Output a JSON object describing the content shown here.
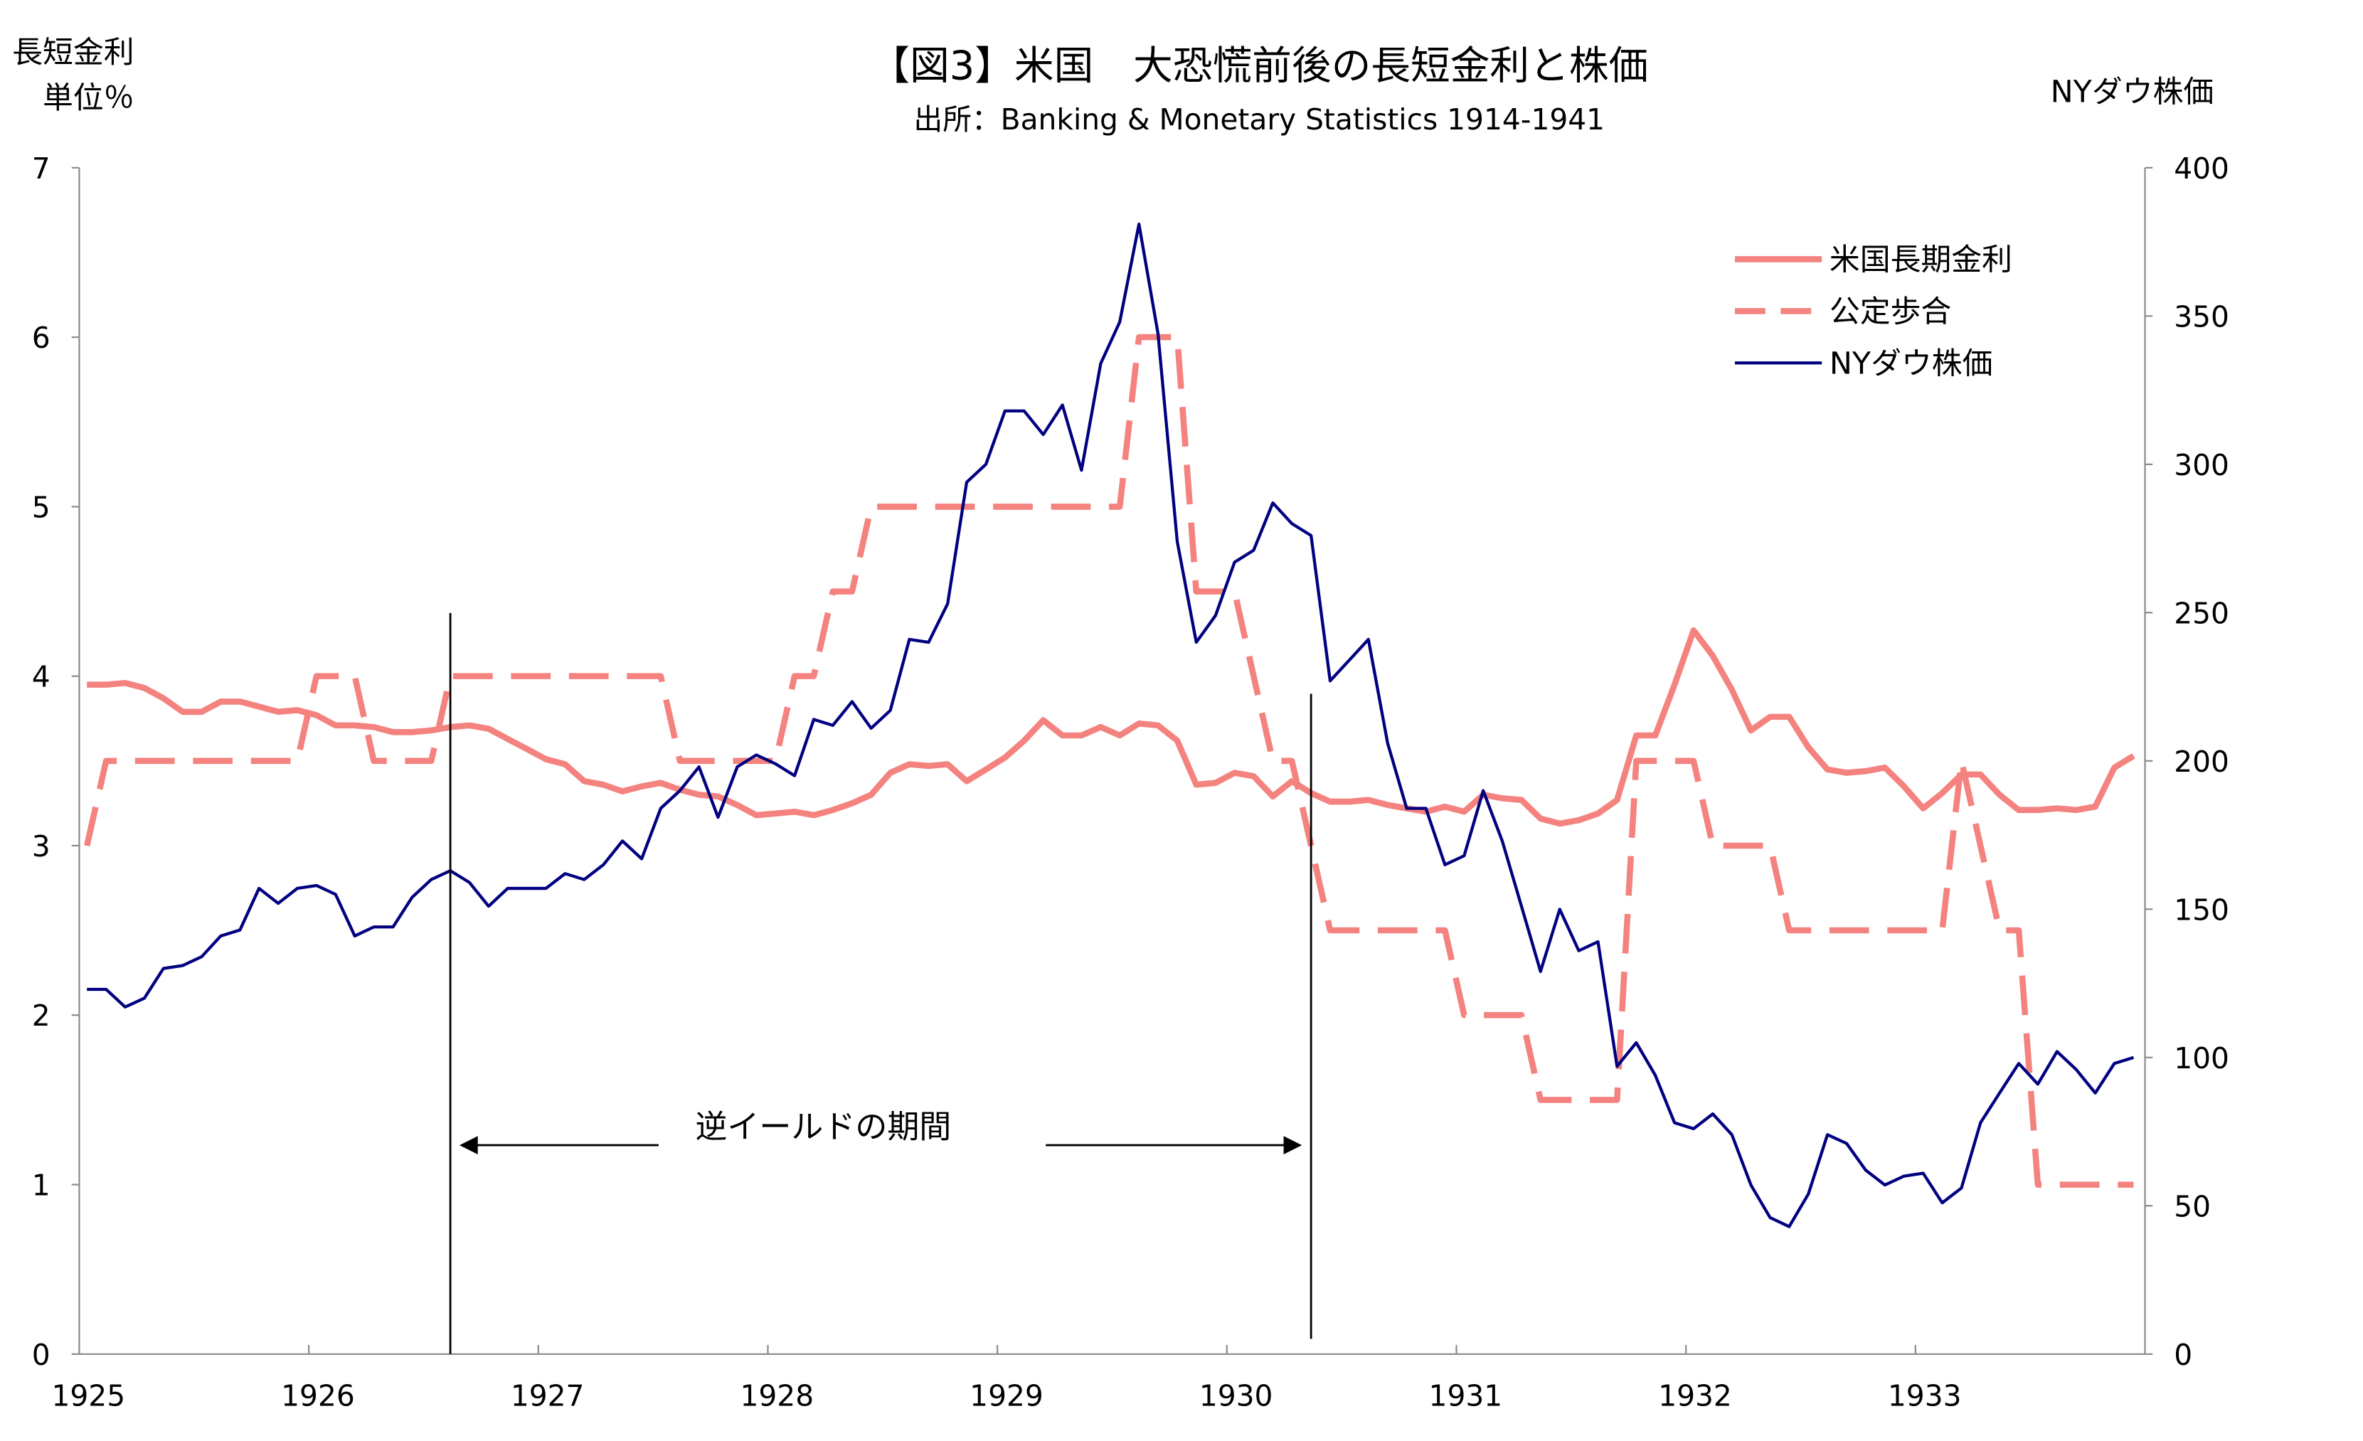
{
  "chart_data": {
    "type": "line",
    "title": "【図3】米国　大恐慌前後の長短金利と株価",
    "subtitle": "出所：Banking & Monetary Statistics 1914-1941",
    "ylabel_left": [
      "長短金利",
      "単位％"
    ],
    "ylabel_right": "NYダウ株価",
    "ylim_left": [
      0,
      7
    ],
    "ylim_right": [
      0,
      400
    ],
    "left_ticks": [
      "0",
      "1",
      "2",
      "3",
      "4",
      "5",
      "6",
      "7"
    ],
    "right_ticks": [
      "0",
      "50",
      "100",
      "150",
      "200",
      "250",
      "300",
      "350",
      "400"
    ],
    "x_ticks": [
      "1925",
      "1926",
      "1927",
      "1928",
      "1929",
      "1930",
      "1931",
      "1932",
      "1933"
    ],
    "x_start": "1925-01",
    "frequency": "monthly",
    "grid": false,
    "legend_placement": "top-right",
    "series": [
      {
        "name": "米国長期金利",
        "axis": "left",
        "style": "solid",
        "color": "#f4827f",
        "values": [
          3.95,
          3.95,
          3.96,
          3.93,
          3.87,
          3.79,
          3.79,
          3.85,
          3.85,
          3.82,
          3.79,
          3.8,
          3.77,
          3.71,
          3.71,
          3.7,
          3.67,
          3.67,
          3.68,
          3.7,
          3.71,
          3.69,
          3.63,
          3.57,
          3.51,
          3.48,
          3.38,
          3.36,
          3.32,
          3.35,
          3.37,
          3.33,
          3.3,
          3.29,
          3.24,
          3.18,
          3.19,
          3.2,
          3.18,
          3.21,
          3.25,
          3.3,
          3.43,
          3.48,
          3.47,
          3.48,
          3.38,
          3.45,
          3.52,
          3.62,
          3.74,
          3.65,
          3.65,
          3.7,
          3.65,
          3.72,
          3.71,
          3.62,
          3.36,
          3.37,
          3.43,
          3.41,
          3.29,
          3.38,
          3.31,
          3.26,
          3.26,
          3.27,
          3.24,
          3.22,
          3.2,
          3.23,
          3.2,
          3.3,
          3.28,
          3.27,
          3.16,
          3.13,
          3.15,
          3.19,
          3.27,
          3.65,
          3.65,
          3.95,
          4.27,
          4.12,
          3.92,
          3.68,
          3.76,
          3.76,
          3.58,
          3.45,
          3.43,
          3.44,
          3.46,
          3.35,
          3.22,
          3.31,
          3.42,
          3.42,
          3.3,
          3.21,
          3.21,
          3.22,
          3.21,
          3.23,
          3.46,
          3.53
        ]
      },
      {
        "name": "公定歩合",
        "axis": "left",
        "style": "dashed",
        "color": "#f4827f",
        "values": [
          3.0,
          3.5,
          3.5,
          3.5,
          3.5,
          3.5,
          3.5,
          3.5,
          3.5,
          3.5,
          3.5,
          3.5,
          4.0,
          4.0,
          4.0,
          3.5,
          3.5,
          3.5,
          3.5,
          4.0,
          4.0,
          4.0,
          4.0,
          4.0,
          4.0,
          4.0,
          4.0,
          4.0,
          4.0,
          4.0,
          4.0,
          3.5,
          3.5,
          3.5,
          3.5,
          3.5,
          3.5,
          4.0,
          4.0,
          4.5,
          4.5,
          5.0,
          5.0,
          5.0,
          5.0,
          5.0,
          5.0,
          5.0,
          5.0,
          5.0,
          5.0,
          5.0,
          5.0,
          5.0,
          5.0,
          6.0,
          6.0,
          6.0,
          4.5,
          4.5,
          4.5,
          4.0,
          3.5,
          3.5,
          3.0,
          2.5,
          2.5,
          2.5,
          2.5,
          2.5,
          2.5,
          2.5,
          2.0,
          2.0,
          2.0,
          2.0,
          1.5,
          1.5,
          1.5,
          1.5,
          1.5,
          3.5,
          3.5,
          3.5,
          3.5,
          3.0,
          3.0,
          3.0,
          3.0,
          2.5,
          2.5,
          2.5,
          2.5,
          2.5,
          2.5,
          2.5,
          2.5,
          2.5,
          3.5,
          3.0,
          2.5,
          2.5,
          1.0,
          1.0,
          1.0,
          1.0,
          1.0,
          1.0
        ]
      },
      {
        "name": "NYダウ株価",
        "axis": "right",
        "style": "solid",
        "color": "#000080",
        "values": [
          123,
          123,
          117,
          120,
          130,
          131,
          134,
          141,
          143,
          157,
          152,
          157,
          158,
          155,
          141,
          144,
          144,
          154,
          160,
          163,
          159,
          151,
          157,
          157,
          157,
          162,
          160,
          165,
          173,
          167,
          184,
          190,
          198,
          181,
          198,
          202,
          199,
          195,
          214,
          212,
          220,
          211,
          217,
          241,
          240,
          253,
          294,
          300,
          318,
          318,
          310,
          320,
          298,
          334,
          348,
          381,
          344,
          274,
          240,
          249,
          267,
          271,
          287,
          280,
          276,
          227,
          234,
          241,
          206,
          184,
          184,
          165,
          168,
          190,
          173,
          151,
          129,
          150,
          136,
          139,
          97,
          105,
          94,
          78,
          76,
          81,
          74,
          57,
          46,
          43,
          54,
          74,
          71,
          62,
          57,
          60,
          61,
          51,
          56,
          78,
          88,
          98,
          91,
          102,
          96,
          88,
          98,
          100
        ]
      }
    ],
    "annotations": {
      "label": "逆イールドの期間",
      "start": "1926-08",
      "end": "1930-05"
    }
  }
}
